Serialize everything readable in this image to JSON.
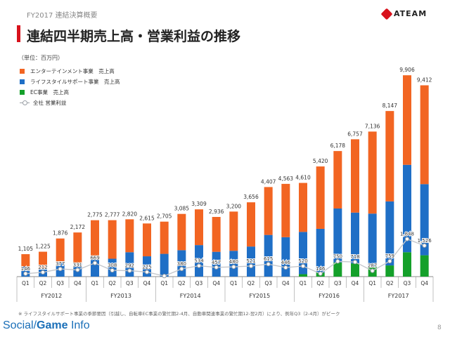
{
  "header": {
    "top_label": "FY2017 連結決算概要",
    "title": "連結四半期売上高・営業利益の推移"
  },
  "logo": {
    "text": "ATEAM"
  },
  "unit_label": "（単位：百万円）",
  "legend": [
    {
      "label": "エンターテインメント事業　売上高",
      "color": "#f26522"
    },
    {
      "label": "ライフスタイルサポート事業　売上高",
      "color": "#1f6fc6"
    },
    {
      "label": "EC事業　売上高",
      "color": "#14a02a"
    },
    {
      "label": "全社 営業利益",
      "color": "#9aa0a6"
    }
  ],
  "footnote": "※ ライフスタイルサポート事業の季節要因（引越し、自転車EC事業の繁忙期2-4月、自動車関連事業の繁忙期12-翌2月）により、例年Q3（2-4月）がピーク",
  "brand": {
    "prefix": "Social",
    "suffix": "Game",
    "tail": "Info"
  },
  "page_number": "8",
  "chart_data": {
    "type": "bar",
    "stacked": true,
    "quarters": [
      "Q1",
      "Q2",
      "Q3",
      "Q4",
      "Q1",
      "Q2",
      "Q3",
      "Q4",
      "Q1",
      "Q2",
      "Q3",
      "Q4",
      "Q1",
      "Q2",
      "Q3",
      "Q4",
      "Q1",
      "Q2",
      "Q3",
      "Q4",
      "Q1",
      "Q2",
      "Q3",
      "Q4"
    ],
    "fiscal_years": [
      "FY2012",
      "FY2013",
      "FY2014",
      "FY2015",
      "FY2016",
      "FY2017"
    ],
    "totals": [
      1105,
      1225,
      1876,
      2172,
      2775,
      2777,
      2820,
      2615,
      2705,
      3085,
      3309,
      2936,
      3200,
      3656,
      4407,
      4563,
      4610,
      5420,
      6178,
      6757,
      7136,
      8147,
      9906,
      9412
    ],
    "total_labels": [
      "1,105",
      "1,225",
      "1,876",
      "2,172",
      "2,775",
      "2,777",
      "2,820",
      "2,615",
      "2,705",
      "3,085",
      "3,309",
      "2,936",
      "3,200",
      "3,656",
      "4,407",
      "4,563",
      "4,610",
      "5,420",
      "6,178",
      "6,757",
      "7,136",
      "8,147",
      "9,906",
      "9,412"
    ],
    "series": [
      {
        "name": "EC事業　売上高",
        "color": "#14a02a",
        "values": [
          0,
          0,
          0,
          0,
          0,
          0,
          0,
          0,
          0,
          0,
          0,
          0,
          0,
          0,
          0,
          0,
          120,
          200,
          700,
          650,
          500,
          550,
          1200,
          1050
        ]
      },
      {
        "name": "ライフスタイルサポート事業　売上高",
        "color": "#1f6fc6",
        "values": [
          500,
          430,
          700,
          650,
          900,
          880,
          1200,
          1000,
          1120,
          1300,
          1550,
          1220,
          1270,
          1480,
          2050,
          1940,
          2080,
          2150,
          2650,
          2500,
          2600,
          3150,
          4300,
          3500
        ]
      },
      {
        "name": "エンターテインメント事業　売上高",
        "color": "#f26522",
        "values": [
          605,
          795,
          1176,
          1522,
          1875,
          1897,
          1620,
          1615,
          1585,
          1785,
          1759,
          1716,
          1930,
          2176,
          2357,
          2623,
          2410,
          3070,
          2828,
          3607,
          4036,
          4447,
          4406,
          4862
        ]
      }
    ],
    "operating_profit": [
      146,
      212,
      377,
      331,
      669,
      308,
      292,
      225,
      30,
      380,
      534,
      457,
      480,
      521,
      615,
      446,
      520,
      146,
      750,
      718,
      287,
      759,
      1848,
      1526
    ],
    "operating_profit_labels": [
      "146",
      "212",
      "377",
      "331",
      "669",
      "308",
      "292",
      "225",
      "",
      "380",
      "534",
      "457",
      "480",
      "521",
      "615",
      "446",
      "520",
      "146",
      "750",
      "718",
      "287",
      "759",
      "1,848",
      "1,526"
    ],
    "ylim": [
      0,
      10500
    ]
  }
}
